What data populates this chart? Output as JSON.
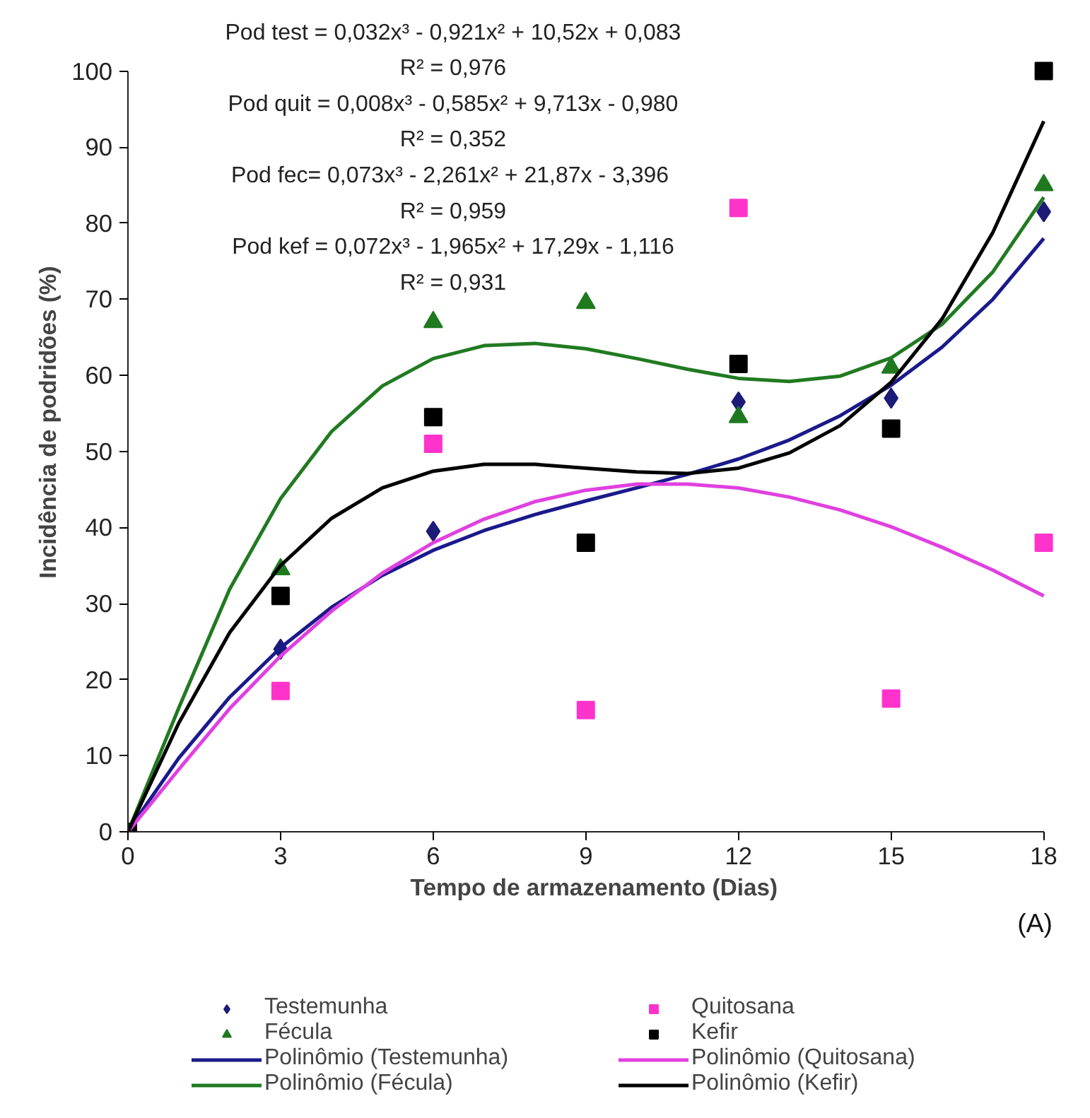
{
  "chart_data": {
    "type": "scatter",
    "xlabel": "Tempo de armazenamento  (Dias)",
    "ylabel": "Incidência de podridões  (%)",
    "x": [
      0,
      3,
      6,
      9,
      12,
      15,
      18
    ],
    "xlim": [
      0,
      18
    ],
    "xticks": [
      0,
      3,
      6,
      9,
      12,
      15,
      18
    ],
    "ylim": [
      0,
      100
    ],
    "yticks": [
      0,
      10,
      20,
      30,
      40,
      50,
      60,
      70,
      80,
      90,
      100
    ],
    "grid": false,
    "legend": "bottom",
    "series": [
      {
        "name": "Testemunha",
        "marker": "diamond",
        "color": "#1c1c78",
        "values": [
          null,
          24,
          39.5,
          null,
          56.5,
          57,
          81.5
        ]
      },
      {
        "name": "Quitosana",
        "marker": "square",
        "color": "#ff33cc",
        "values": [
          null,
          18.5,
          51,
          16,
          82,
          17.5,
          38
        ]
      },
      {
        "name": "Fécula",
        "marker": "triangle",
        "color": "#1f7a1f",
        "values": [
          null,
          34.5,
          67,
          69.5,
          54.5,
          61,
          85
        ]
      },
      {
        "name": "Kefir",
        "marker": "square",
        "color": "#000000",
        "values": [
          0,
          31,
          54.5,
          38,
          61.5,
          53,
          100
        ]
      },
      {
        "name": "Polinômio (Testemunha)",
        "type": "line",
        "marker": "none",
        "color": "#1a1a8c",
        "x": [
          0,
          1,
          2,
          3,
          4,
          5,
          6,
          7,
          8,
          9,
          10,
          11,
          12,
          13,
          14,
          15,
          16,
          17,
          18
        ],
        "values": [
          0.1,
          9.7,
          17.7,
          24.2,
          29.5,
          33.7,
          37,
          39.6,
          41.7,
          43.5,
          45.2,
          47,
          49,
          51.5,
          54.7,
          58.7,
          63.7,
          70,
          78
        ]
      },
      {
        "name": "Polinômio (Quitosana)",
        "type": "line",
        "marker": "none",
        "color": "#e040e0",
        "x": [
          0,
          1,
          2,
          3,
          4,
          5,
          6,
          7,
          8,
          9,
          10,
          11,
          12,
          13,
          14,
          15,
          16,
          17,
          18
        ],
        "values": [
          0,
          8.2,
          16.2,
          23.1,
          29,
          34,
          38,
          41.1,
          43.4,
          44.9,
          45.7,
          45.7,
          45.2,
          44,
          42.3,
          40.1,
          37.4,
          34.4,
          31
        ]
      },
      {
        "name": "Polinômio (Fécula)",
        "type": "line",
        "marker": "none",
        "color": "#217a21",
        "x": [
          0,
          1,
          2,
          3,
          4,
          5,
          6,
          7,
          8,
          9,
          10,
          11,
          12,
          13,
          14,
          15,
          16,
          17,
          18
        ],
        "values": [
          0,
          16.3,
          31.9,
          43.8,
          52.6,
          58.6,
          62.2,
          63.9,
          64.2,
          63.5,
          62.2,
          60.8,
          59.6,
          59.2,
          59.9,
          62.3,
          66.7,
          73.6,
          83.4
        ]
      },
      {
        "name": "Polinômio (Kefir)",
        "type": "line",
        "marker": "none",
        "color": "#000000",
        "x": [
          0,
          1,
          2,
          3,
          4,
          5,
          6,
          7,
          8,
          9,
          10,
          11,
          12,
          13,
          14,
          15,
          16,
          17,
          18
        ],
        "values": [
          0,
          14.3,
          26.2,
          35,
          41.2,
          45.2,
          47.4,
          48.3,
          48.3,
          47.8,
          47.3,
          47.1,
          47.8,
          49.8,
          53.4,
          59.1,
          67.4,
          78.8,
          93.4
        ]
      }
    ],
    "annotations": [
      "Pod test = 0,032x³ - 0,921x² + 10,52x + 0,083",
      "R² = 0,976",
      "Pod quit = 0,008x³ - 0,585x² + 9,713x - 0,980",
      "R² = 0,352",
      "Pod  fec= 0,073x³ - 2,261x² + 21,87x - 3,396",
      "R² = 0,959",
      "Pod kef = 0,072x³ - 1,965x² + 17,29x - 1,116",
      "R² = 0,931",
      "(A)"
    ]
  }
}
